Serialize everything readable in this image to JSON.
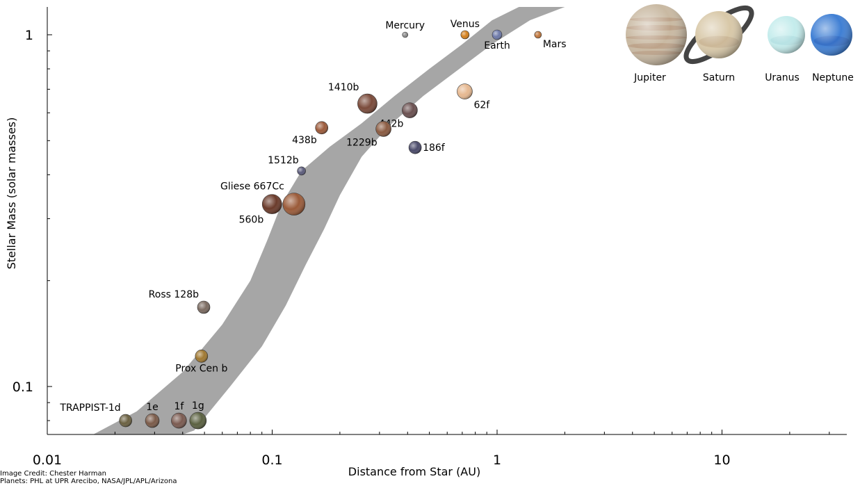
{
  "chart_data": {
    "type": "scatter",
    "xlabel": "Distance from Star (AU)",
    "ylabel": "Stellar Mass (solar masses)",
    "x_scale": "log",
    "y_scale": "log",
    "xlim": [
      0.01,
      40
    ],
    "ylim": [
      0.07,
      1.25
    ],
    "x_ticks": [
      {
        "value": 0.01,
        "label": "0.01"
      },
      {
        "value": 0.1,
        "label": "0.1"
      },
      {
        "value": 1,
        "label": "1"
      },
      {
        "value": 10,
        "label": "10"
      }
    ],
    "y_ticks": [
      {
        "value": 0.1,
        "label": "0.1"
      },
      {
        "value": 1,
        "label": "1"
      }
    ],
    "habitable_zone_band": {
      "color": "#a6a6a6",
      "inner_edge": [
        [
          0.016,
          0.07
        ],
        [
          0.025,
          0.085
        ],
        [
          0.04,
          0.11
        ],
        [
          0.06,
          0.15
        ],
        [
          0.08,
          0.2
        ],
        [
          0.095,
          0.26
        ],
        [
          0.11,
          0.33
        ],
        [
          0.135,
          0.41
        ],
        [
          0.18,
          0.48
        ],
        [
          0.25,
          0.56
        ],
        [
          0.35,
          0.67
        ],
        [
          0.5,
          0.8
        ],
        [
          0.7,
          0.94
        ],
        [
          0.95,
          1.1
        ],
        [
          1.25,
          1.25
        ]
      ],
      "outer_edge": [
        [
          2.0,
          1.25
        ],
        [
          1.4,
          1.1
        ],
        [
          0.95,
          0.94
        ],
        [
          0.68,
          0.8
        ],
        [
          0.47,
          0.67
        ],
        [
          0.33,
          0.55
        ],
        [
          0.25,
          0.45
        ],
        [
          0.2,
          0.35
        ],
        [
          0.17,
          0.28
        ],
        [
          0.14,
          0.22
        ],
        [
          0.115,
          0.17
        ],
        [
          0.09,
          0.13
        ],
        [
          0.065,
          0.1
        ],
        [
          0.045,
          0.075
        ],
        [
          0.04,
          0.07
        ]
      ]
    },
    "points": [
      {
        "name": "Mercury",
        "label": "Mercury",
        "x": 0.39,
        "y": 1.0,
        "color": "#8c8c8c",
        "size": 4,
        "label_pos": "above"
      },
      {
        "name": "Venus",
        "label": "Venus",
        "x": 0.72,
        "y": 1.0,
        "color": "#d4801c",
        "size": 6,
        "label_pos": "above"
      },
      {
        "name": "Earth",
        "label": "Earth",
        "x": 1.0,
        "y": 1.0,
        "color": "#6c78a8",
        "size": 7,
        "label_pos": "below"
      },
      {
        "name": "Mars",
        "label": "Mars",
        "x": 1.52,
        "y": 1.0,
        "color": "#c0763c",
        "size": 5,
        "label_pos": "below-right"
      },
      {
        "name": "Kepler-1410b",
        "label": "1410b",
        "x": 0.265,
        "y": 0.637,
        "color": "#7a4a3a",
        "size": 14,
        "label_pos": "above-left"
      },
      {
        "name": "Kepler-442b",
        "label": "442b",
        "x": 0.409,
        "y": 0.61,
        "color": "#6a5050",
        "size": 11,
        "label_pos": "below-left"
      },
      {
        "name": "Kepler-62f",
        "label": "62f",
        "x": 0.718,
        "y": 0.69,
        "color": "#e6b890",
        "size": 11,
        "label_pos": "below-right"
      },
      {
        "name": "Kepler-438b",
        "label": "438b",
        "x": 0.166,
        "y": 0.544,
        "color": "#9c5a3a",
        "size": 9,
        "label_pos": "below-left"
      },
      {
        "name": "Kepler-1229b",
        "label": "1229b",
        "x": 0.3125,
        "y": 0.54,
        "color": "#8a5a40",
        "size": 11,
        "label_pos": "below-left"
      },
      {
        "name": "Kepler-186f",
        "label": "186f",
        "x": 0.432,
        "y": 0.478,
        "color": "#4a4a6a",
        "size": 9,
        "label_pos": "right"
      },
      {
        "name": "K2-72e / 1512b",
        "label": "1512b",
        "x": 0.135,
        "y": 0.41,
        "color": "#5a5a7a",
        "size": 6,
        "label_pos": "above-left"
      },
      {
        "name": "Gliese 667Cc",
        "label": "Gliese 667Cc",
        "x": 0.125,
        "y": 0.33,
        "color": "#9a5a38",
        "size": 16,
        "label_pos": "above-left"
      },
      {
        "name": "Kepler-560b",
        "label": "560b",
        "x": 0.0998,
        "y": 0.33,
        "color": "#6a3a2a",
        "size": 14,
        "label_pos": "below-left"
      },
      {
        "name": "Ross 128b",
        "label": "Ross 128b",
        "x": 0.0496,
        "y": 0.168,
        "color": "#7a6a60",
        "size": 9,
        "label_pos": "above-left"
      },
      {
        "name": "Proxima Centauri b",
        "label": "Prox Cen b",
        "x": 0.0485,
        "y": 0.122,
        "color": "#a07830",
        "size": 9,
        "label_pos": "below"
      },
      {
        "name": "TRAPPIST-1d",
        "label": "TRAPPIST-1d",
        "x": 0.0223,
        "y": 0.08,
        "color": "#6a6040",
        "size": 9,
        "label_pos": "above-left"
      },
      {
        "name": "TRAPPIST-1e",
        "label": "1e",
        "x": 0.0293,
        "y": 0.08,
        "color": "#7a5a48",
        "size": 10,
        "label_pos": "above"
      },
      {
        "name": "TRAPPIST-1f",
        "label": "1f",
        "x": 0.0385,
        "y": 0.08,
        "color": "#7a5a50",
        "size": 11,
        "label_pos": "above"
      },
      {
        "name": "TRAPPIST-1g",
        "label": "1g",
        "x": 0.0468,
        "y": 0.08,
        "color": "#5a6040",
        "size": 12,
        "label_pos": "above"
      }
    ],
    "reference_planets": [
      {
        "name": "Jupiter",
        "label": "Jupiter",
        "color": "#c9b9a2",
        "band": "#b89a80",
        "size": 44,
        "ring": false
      },
      {
        "name": "Saturn",
        "label": "Saturn",
        "color": "#d8c8a8",
        "band": "#c0a888",
        "size": 34,
        "ring": true
      },
      {
        "name": "Uranus",
        "label": "Uranus",
        "color": "#c4ecec",
        "band": "#aad8dc",
        "size": 27,
        "ring": false
      },
      {
        "name": "Neptune",
        "label": "Neptune",
        "color": "#3f7fd4",
        "band": "#2f62b8",
        "size": 30,
        "ring": false
      }
    ]
  },
  "credit": {
    "line1": "Image Credit: Chester Harman",
    "line2": "Planets: PHL at UPR Arecibo, NASA/JPL/APL/Arizona"
  }
}
